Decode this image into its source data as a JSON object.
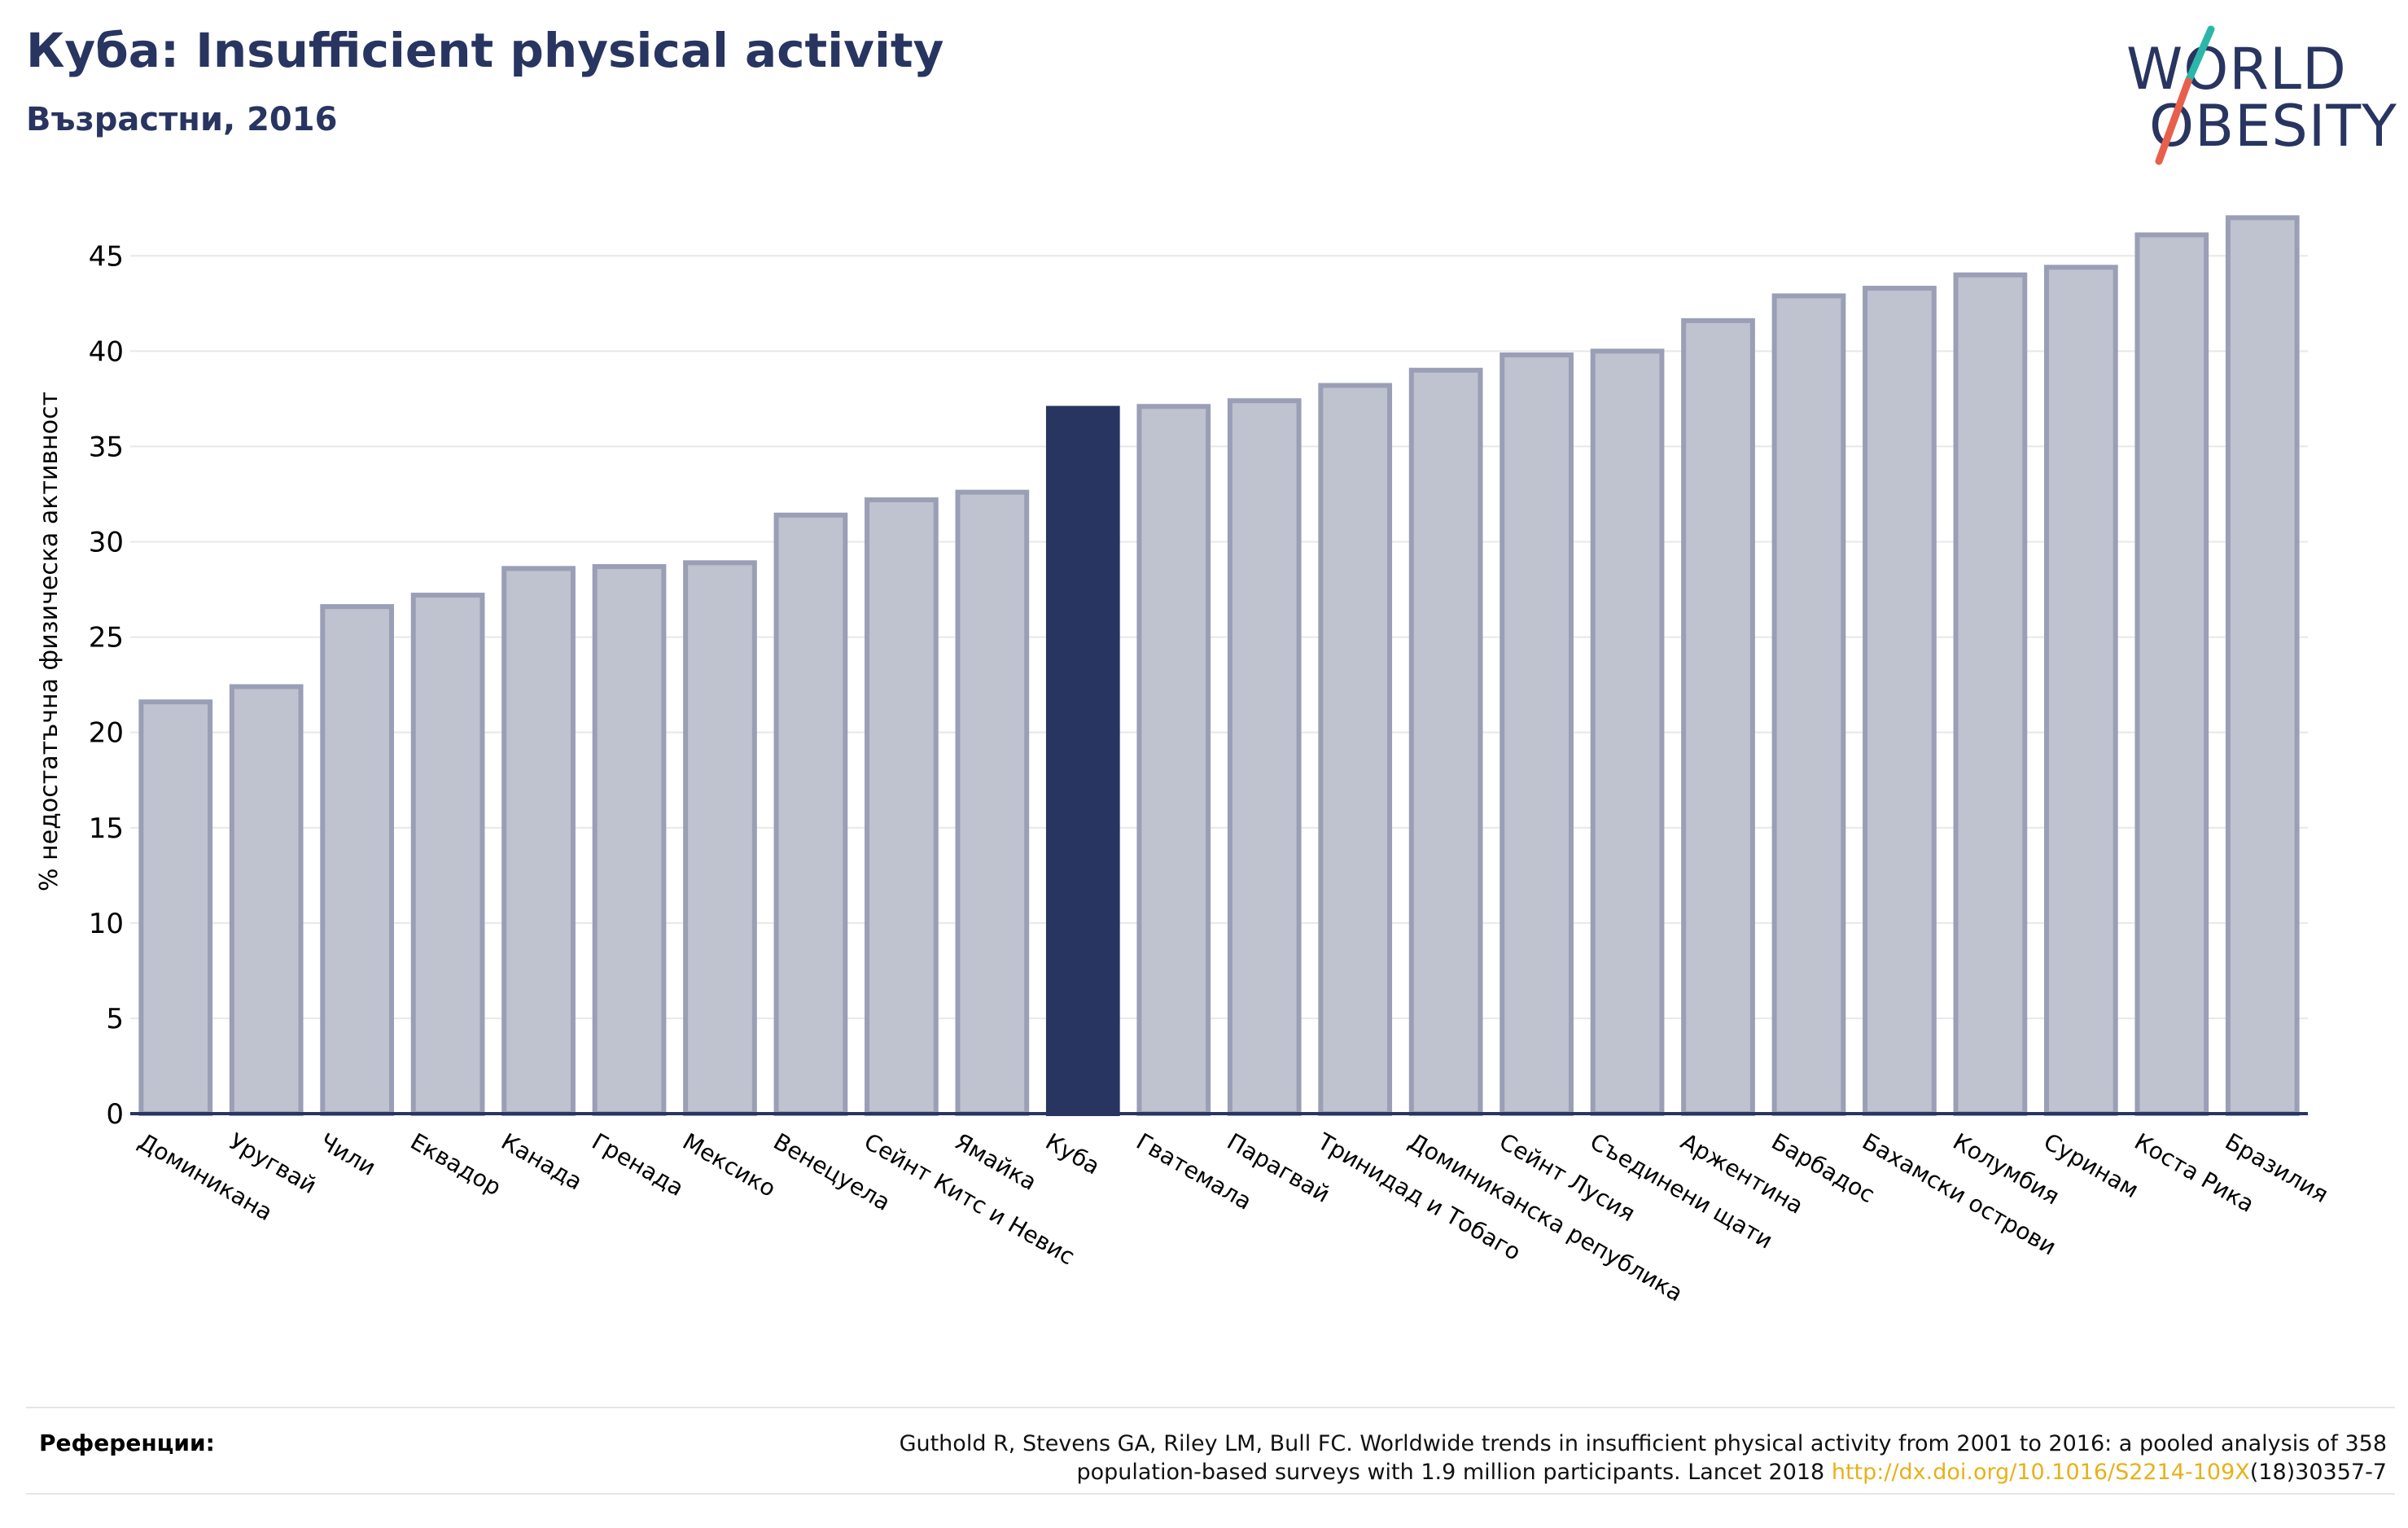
{
  "header": {
    "title": "Куба: Insufficient physical activity",
    "subtitle": "Възрастни, 2016"
  },
  "logo": {
    "line1": "WORLD",
    "line2": "OBESITY",
    "colors": {
      "text": "#283560",
      "slash_top": "#2ab7a9",
      "slash_bottom": "#e8604c"
    }
  },
  "colors": {
    "highlight": "#283560",
    "bar_fill": "#bfc2cf",
    "bar_stroke": "#9a9fb6",
    "grid": "#e8e8e8"
  },
  "chart_data": {
    "type": "bar",
    "title": "Куба: Insufficient physical activity",
    "subtitle": "Възрастни, 2016",
    "ylabel": "% недостатъчна физическа активност",
    "xlabel": "",
    "ylim": [
      0,
      48
    ],
    "yticks": [
      0,
      5,
      10,
      15,
      20,
      25,
      30,
      35,
      40,
      45
    ],
    "grid": true,
    "highlight": "Куба",
    "categories": [
      "Доминикана",
      "Уругвай",
      "Чили",
      "Еквадор",
      "Канада",
      "Гренада",
      "Мексико",
      "Венецуела",
      "Сейнт Китс и Невис",
      "Ямайка",
      "Куба",
      "Гватемала",
      "Парагвай",
      "Тринидад и Тобаго",
      "Доминиканска република",
      "Сейнт Лусия",
      "Съединени щати",
      "Аржентина",
      "Барбадос",
      "Бахамски острови",
      "Колумбия",
      "Суринам",
      "Коста Рика",
      "Бразилия"
    ],
    "values": [
      21.6,
      22.4,
      26.6,
      27.2,
      28.6,
      28.7,
      28.9,
      31.4,
      32.2,
      32.6,
      37.0,
      37.1,
      37.4,
      38.2,
      39.0,
      39.8,
      40.0,
      41.6,
      42.9,
      43.3,
      44.0,
      44.4,
      46.1,
      47.0
    ]
  },
  "references": {
    "label": "Референции:",
    "line1": "Guthold R, Stevens GA, Riley LM, Bull FC. Worldwide trends in insufficient physical activity from 2001 to 2016: a pooled analysis of 358",
    "line2_text": "population-based surveys with 1.9 million participants. Lancet 2018 ",
    "link": "http://dx.doi.org/10.1016/S2214-109X",
    "line2_tail": "(18)30357-7"
  }
}
